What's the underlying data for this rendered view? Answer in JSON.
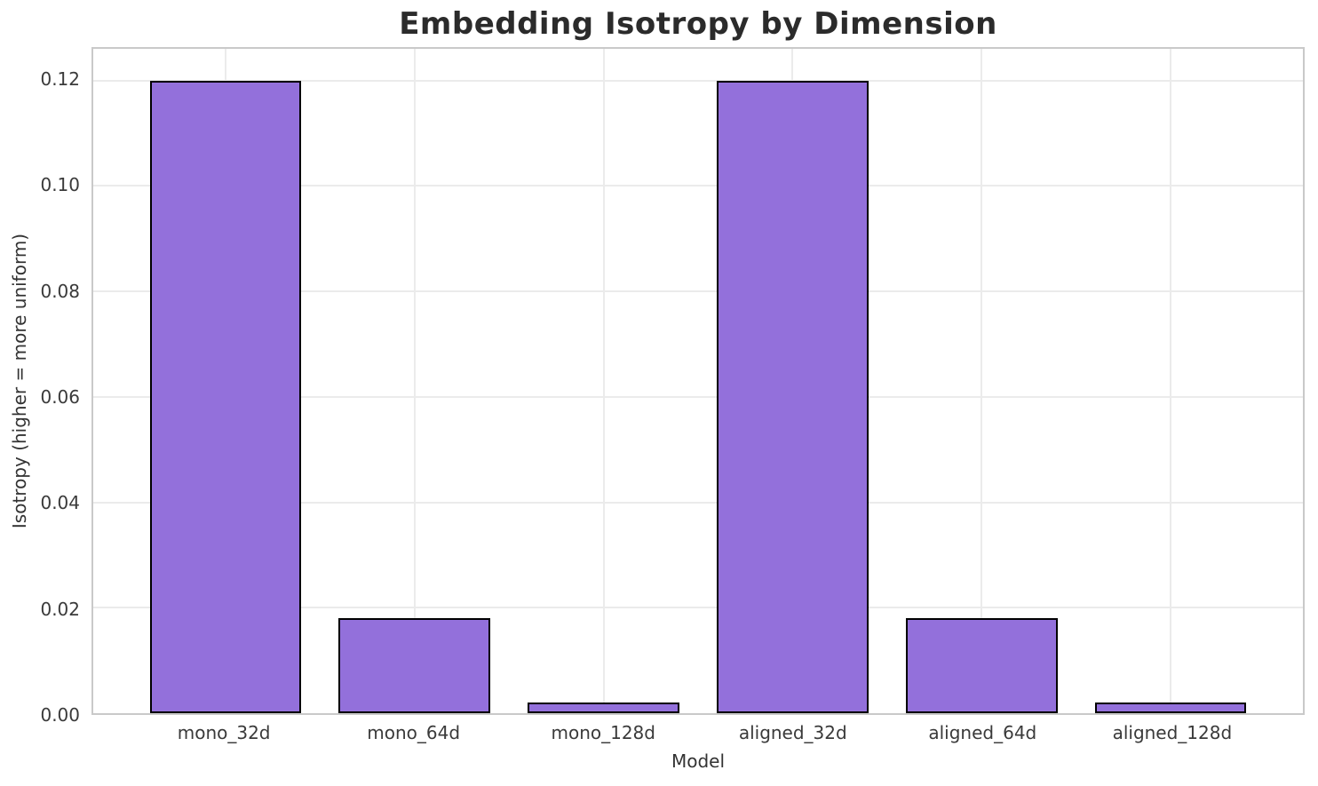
{
  "chart_data": {
    "type": "bar",
    "title": "Embedding Isotropy by Dimension",
    "xlabel": "Model",
    "ylabel": "Isotropy (higher = more uniform)",
    "categories": [
      "mono_32d",
      "mono_64d",
      "mono_128d",
      "aligned_32d",
      "aligned_64d",
      "aligned_128d"
    ],
    "values": [
      0.12,
      0.018,
      0.002,
      0.12,
      0.018,
      0.002
    ],
    "ylim": [
      0,
      0.126
    ],
    "yticks": [
      0.0,
      0.02,
      0.04,
      0.06,
      0.08,
      0.1,
      0.12
    ],
    "ytick_labels": [
      "0.00",
      "0.02",
      "0.04",
      "0.06",
      "0.08",
      "0.10",
      "0.12"
    ],
    "grid": true,
    "legend_position": "none",
    "bar_color": "#9370DB",
    "bar_edge_color": "#000000",
    "grid_color": "#ebebeb",
    "spine_color": "#c9c9c9",
    "background_color": "#ffffff",
    "title_color": "#2b2b2b",
    "tick_color": "#3a3a3a"
  }
}
